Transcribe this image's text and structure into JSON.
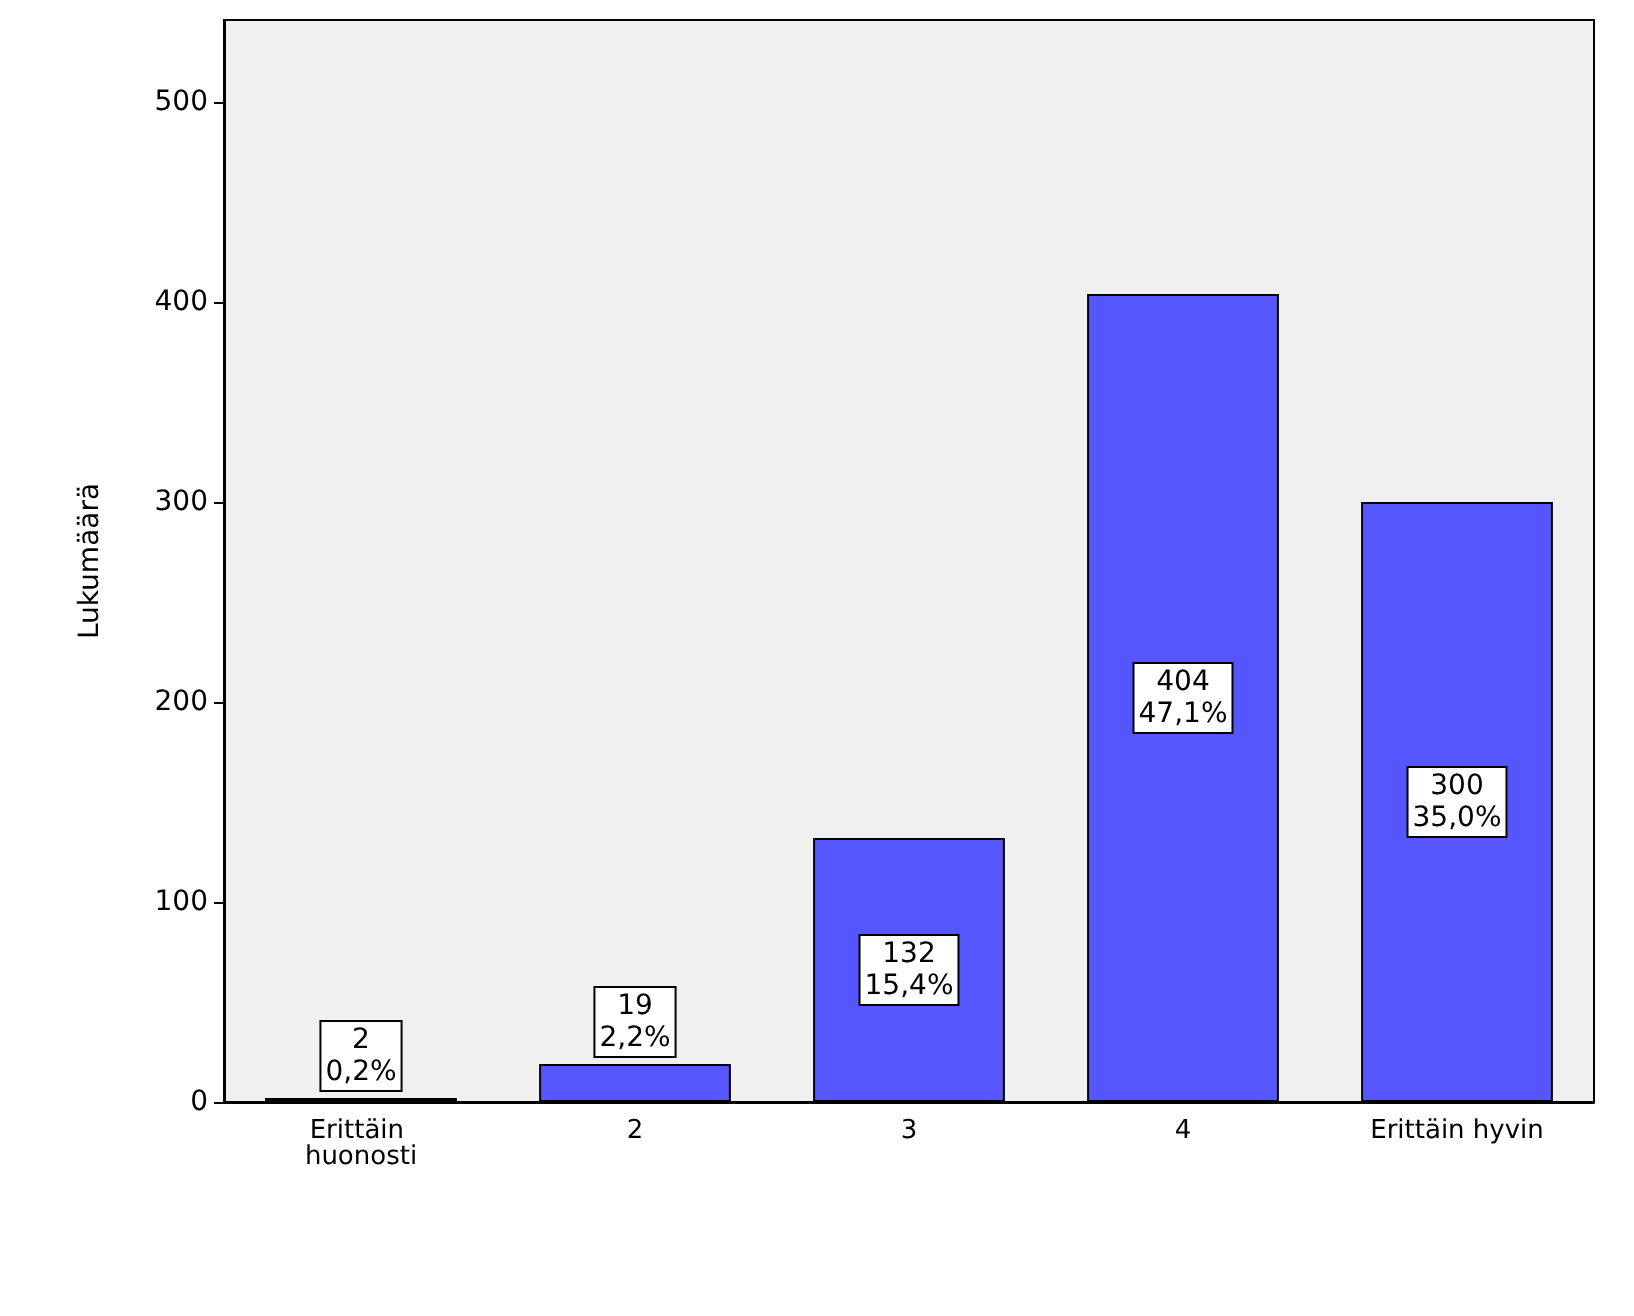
{
  "chart_data": {
    "type": "bar",
    "ylabel": "Lukumäärä",
    "categories": [
      "Erittäin huonosti",
      "2",
      "3",
      "4",
      "Erittäin hyvin"
    ],
    "values": [
      2,
      19,
      132,
      404,
      300
    ],
    "value_labels": [
      "2\n0,2%",
      "19\n2,2%",
      "132\n15,4%",
      "404\n47,1%",
      "300\n35,0%"
    ],
    "color": "#5656ff",
    "ylim": [
      0,
      541
    ],
    "yticks": [
      0,
      100,
      200,
      300,
      400,
      500
    ],
    "grid": false
  }
}
